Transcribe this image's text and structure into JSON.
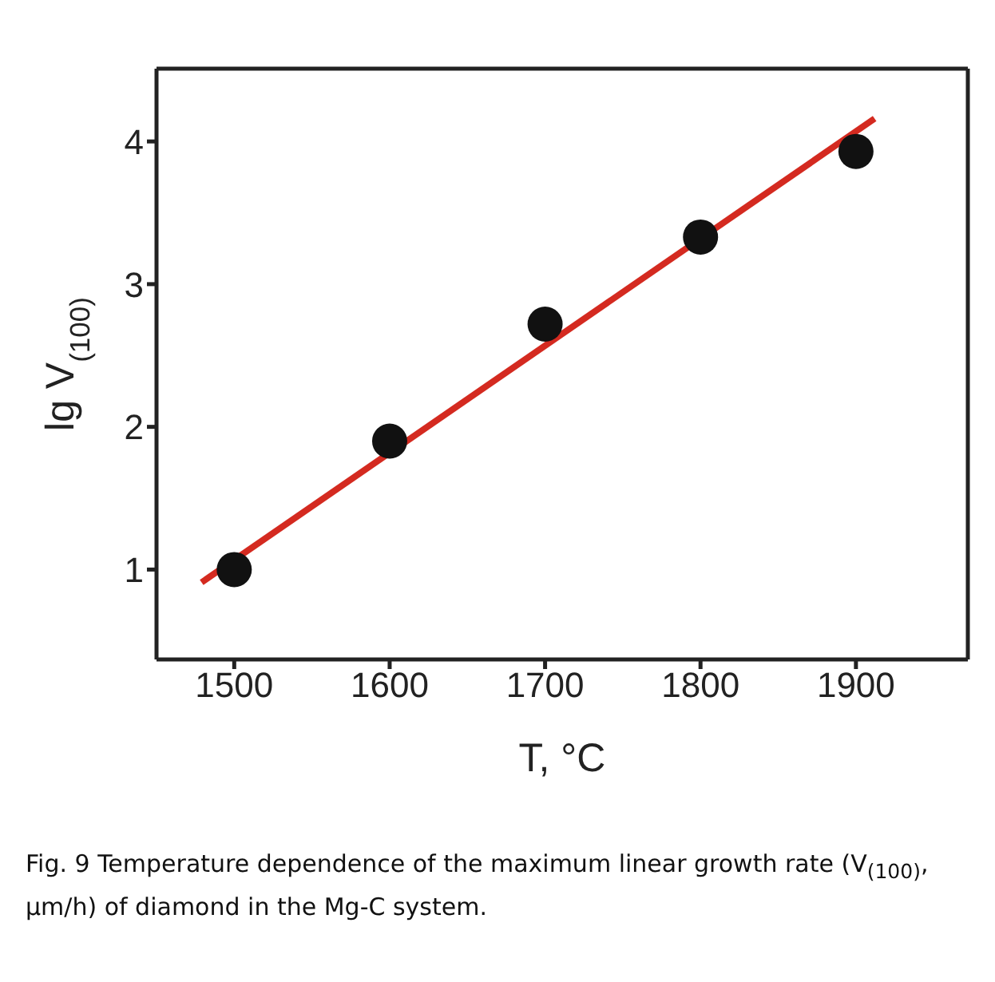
{
  "chart_data": {
    "type": "scatter",
    "xlabel": "T, °C",
    "ylabel": "lg V$_{(100)}$",
    "series": [
      {
        "color": "#111111",
        "x": [
          1500,
          1600,
          1700,
          1800,
          1900
        ],
        "values": [
          1.0,
          1.9,
          2.72,
          3.33,
          3.93
        ],
        "marker": "circle"
      },
      {
        "type": "line",
        "color": "#d42a20",
        "x": [
          1479,
          1912
        ],
        "values": [
          0.91,
          4.16
        ],
        "marker": "none",
        "line_style": "solid"
      }
    ],
    "xlim": [
      1450,
      1972
    ],
    "xticks": [
      1500,
      1600,
      1700,
      1800,
      1900
    ],
    "ylim": [
      0.37,
      4.51
    ],
    "yticks": [
      1,
      2,
      3,
      4
    ],
    "annotations": [
      "Fig. 9 Temperature dependence of the maximum linear growth rate (V$_{(100)}$, µm/h) of diamond in the Mg-C system."
    ]
  }
}
